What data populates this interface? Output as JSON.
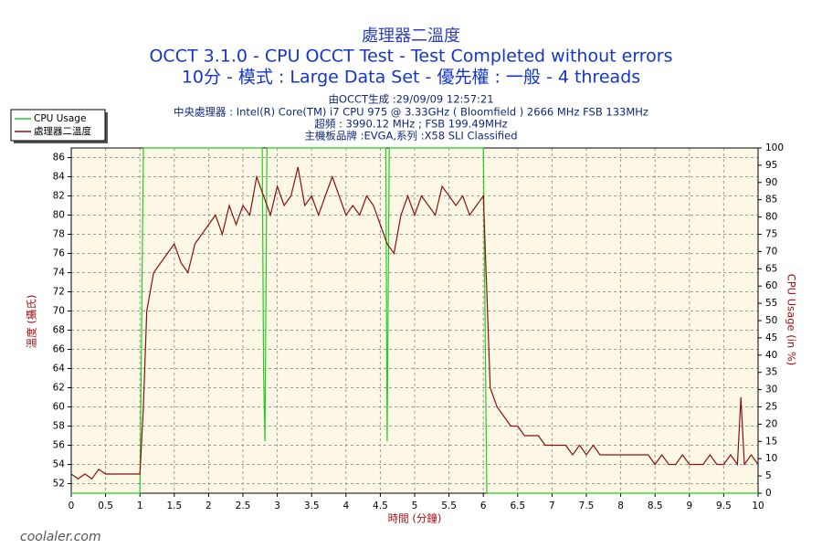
{
  "chart_data": {
    "type": "line",
    "title": "處理器二溫度",
    "subtitle": "OCCT 3.1.0 - CPU OCCT Test - Test Completed without errors",
    "subtitle2": "10分 - 模式 : Large Data Set - 優先權 : 一般 - 4 threads",
    "info": [
      "由OCCT生成 :29/09/09 12:57:21",
      "中央處理器 : Intel(R) Core(TM) i7 CPU 975 @ 3.33GHz ( Bloomfield ) 2666 MHz FSB 133MHz",
      "超頻 : 3990.12 MHz ; FSB 199.49MHz",
      "主機板品牌 :EVGA,系列 :X58 SLI Classified"
    ],
    "xlabel": "時間 (分鐘)",
    "ylabel": "溫度 (攝氏)",
    "y2label": "CPU Usage (in %)",
    "watermark": "coolaler.com",
    "xlim": [
      0,
      10
    ],
    "xticks": [
      0,
      0.5,
      1,
      1.5,
      2,
      2.5,
      3,
      3.5,
      4,
      4.5,
      5,
      5.5,
      6,
      6.5,
      7,
      7.5,
      8,
      8.5,
      9,
      9.5,
      10
    ],
    "ylim": [
      51,
      87
    ],
    "yticks": [
      52,
      54,
      56,
      58,
      60,
      62,
      64,
      66,
      68,
      70,
      72,
      74,
      76,
      78,
      80,
      82,
      84,
      86
    ],
    "y2lim": [
      0,
      100
    ],
    "y2ticks": [
      0,
      5,
      10,
      15,
      20,
      25,
      30,
      35,
      40,
      45,
      50,
      55,
      60,
      65,
      70,
      75,
      80,
      85,
      90,
      95,
      100
    ],
    "grid": true,
    "legend": "upper left",
    "series": [
      {
        "name": "CPU Usage",
        "color": "#22cc22",
        "axis": "y2",
        "x": [
          0,
          1.0,
          1.05,
          2.78,
          2.8,
          2.82,
          2.85,
          4.58,
          4.6,
          4.63,
          6.0,
          6.05,
          10
        ],
        "values": [
          0,
          0,
          100,
          100,
          35,
          15,
          100,
          100,
          15,
          100,
          100,
          0,
          0
        ]
      },
      {
        "name": "處理器二溫度",
        "color": "#8b1010",
        "axis": "y",
        "x": [
          0,
          0.1,
          0.2,
          0.3,
          0.4,
          0.5,
          0.6,
          0.7,
          0.8,
          0.9,
          1.0,
          1.05,
          1.1,
          1.2,
          1.3,
          1.4,
          1.5,
          1.6,
          1.7,
          1.8,
          1.9,
          2.0,
          2.1,
          2.2,
          2.3,
          2.4,
          2.5,
          2.6,
          2.7,
          2.8,
          2.9,
          3.0,
          3.1,
          3.2,
          3.3,
          3.4,
          3.5,
          3.6,
          3.7,
          3.8,
          3.9,
          4.0,
          4.1,
          4.2,
          4.3,
          4.4,
          4.5,
          4.6,
          4.7,
          4.8,
          4.9,
          5.0,
          5.1,
          5.2,
          5.3,
          5.4,
          5.5,
          5.6,
          5.7,
          5.8,
          5.9,
          6.0,
          6.05,
          6.1,
          6.2,
          6.3,
          6.4,
          6.5,
          6.6,
          6.7,
          6.8,
          6.9,
          7.0,
          7.1,
          7.2,
          7.3,
          7.4,
          7.5,
          7.6,
          7.7,
          7.8,
          7.9,
          8.0,
          8.1,
          8.2,
          8.3,
          8.4,
          8.5,
          8.6,
          8.7,
          8.8,
          8.9,
          9.0,
          9.1,
          9.2,
          9.3,
          9.4,
          9.5,
          9.6,
          9.7,
          9.75,
          9.8,
          9.9,
          10
        ],
        "values": [
          53,
          52.5,
          53,
          52.5,
          53.5,
          53,
          53,
          53,
          53,
          53,
          53,
          60,
          70,
          74,
          75,
          76,
          77,
          75,
          74,
          77,
          78,
          79,
          80,
          78,
          81,
          79,
          81,
          80,
          84,
          82,
          80,
          83,
          81,
          82,
          85,
          81,
          82,
          80,
          82,
          84,
          82,
          80,
          81,
          80,
          82,
          81,
          79,
          77,
          76,
          80,
          82,
          80,
          82,
          81,
          80,
          83,
          82,
          81,
          82,
          80,
          81,
          82,
          72,
          62,
          60,
          59,
          58,
          58,
          57,
          57,
          57,
          56,
          56,
          56,
          56,
          55,
          56,
          55,
          56,
          55,
          55,
          55,
          55,
          55,
          55,
          55,
          55,
          54,
          55,
          54,
          54,
          55,
          54,
          54,
          54,
          55,
          54,
          54,
          55,
          54,
          61,
          54,
          55,
          54
        ]
      }
    ]
  }
}
